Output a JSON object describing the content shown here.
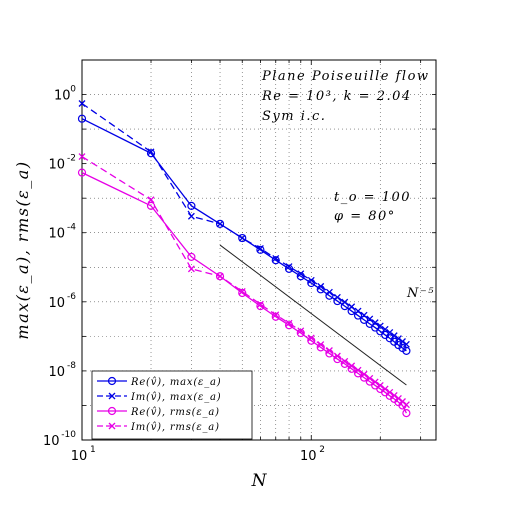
{
  "chart_data": {
    "type": "line",
    "xscale": "log",
    "yscale": "log",
    "xlim": [
      10,
      350
    ],
    "ylim": [
      1e-10,
      10
    ],
    "grid": true,
    "xlabel": "N",
    "ylabel": "max(ε_a), rms(ε_a)",
    "x_ticks": [
      {
        "value": 10,
        "base": "10",
        "exp": "1"
      },
      {
        "value": 100,
        "base": "10",
        "exp": "2"
      }
    ],
    "y_ticks": [
      {
        "value": 1e-10,
        "base": "10",
        "exp": "-10"
      },
      {
        "value": 1e-08,
        "base": "10",
        "exp": "-8"
      },
      {
        "value": 1e-06,
        "base": "10",
        "exp": "-6"
      },
      {
        "value": 0.0001,
        "base": "10",
        "exp": "-4"
      },
      {
        "value": 0.01,
        "base": "10",
        "exp": "-2"
      },
      {
        "value": 1,
        "base": "10",
        "exp": "0"
      }
    ],
    "annotations": {
      "title_lines": [
        "Plane Poiseuille flow",
        "Re = 10³,  k = 2.04",
        "Sym i.c."
      ],
      "params_lines": [
        "t_o = 100",
        "φ = 80°"
      ],
      "slope_label": "N⁻⁵"
    },
    "reference_line": {
      "label": "N⁻⁵",
      "x": [
        40,
        260
      ],
      "y": [
        4.4e-05,
        3.9e-09
      ]
    },
    "x": [
      10,
      20,
      30,
      40,
      50,
      60,
      70,
      80,
      90,
      100,
      110,
      120,
      130,
      140,
      150,
      160,
      170,
      180,
      190,
      200,
      210,
      220,
      230,
      240,
      250,
      260
    ],
    "series": [
      {
        "name": "Re(v̂),  max(ε_a)",
        "color": "#0000e6",
        "dash": "solid",
        "marker": "circle",
        "values": [
          0.2,
          0.02,
          0.0006,
          0.00018,
          7e-05,
          3.2e-05,
          1.6e-05,
          9e-06,
          5.5e-06,
          3.5e-06,
          2.3e-06,
          1.5e-06,
          1.05e-06,
          7.5e-07,
          5.4e-07,
          4e-07,
          3e-07,
          2.3e-07,
          1.8e-07,
          1.4e-07,
          1.1e-07,
          8.8e-08,
          7e-08,
          5.6e-08,
          4.6e-08,
          3.8e-08
        ]
      },
      {
        "name": "Im(v̂),  max(ε_a)",
        "color": "#0000e6",
        "dash": "dashed",
        "marker": "x",
        "values": [
          0.55,
          0.022,
          0.0003,
          0.00018,
          7e-05,
          3.5e-05,
          1.8e-05,
          1.05e-05,
          6.5e-06,
          4.2e-06,
          2.8e-06,
          1.9e-06,
          1.35e-06,
          9.8e-07,
          7.2e-07,
          5.4e-07,
          4.1e-07,
          3.2e-07,
          2.5e-07,
          2e-07,
          1.6e-07,
          1.3e-07,
          1.05e-07,
          8.6e-08,
          7.1e-08,
          5.9e-08
        ]
      },
      {
        "name": "Re(v̂),  rms(ε_a)",
        "color": "#e600e6",
        "dash": "solid",
        "marker": "circle",
        "values": [
          0.0055,
          0.0006,
          2e-05,
          5.5e-06,
          1.8e-06,
          7.5e-07,
          3.7e-07,
          2.1e-07,
          1.25e-07,
          7.5e-08,
          4.8e-08,
          3.2e-08,
          2.2e-08,
          1.6e-08,
          1.15e-08,
          8.5e-09,
          6.4e-09,
          4.9e-09,
          3.8e-09,
          3e-09,
          2.4e-09,
          1.9e-09,
          1.55e-09,
          1.25e-09,
          1e-09,
          6e-10
        ]
      },
      {
        "name": "Im(v̂),  rms(ε_a)",
        "color": "#e600e6",
        "dash": "dashed",
        "marker": "x",
        "values": [
          0.016,
          0.0009,
          9e-06,
          5.5e-06,
          2e-06,
          8.5e-07,
          4.2e-07,
          2.4e-07,
          1.45e-07,
          9e-08,
          5.8e-08,
          3.9e-08,
          2.7e-08,
          1.9e-08,
          1.4e-08,
          1.05e-08,
          8e-09,
          6.1e-09,
          4.8e-09,
          3.8e-09,
          3e-09,
          2.4e-09,
          1.95e-09,
          1.6e-09,
          1.3e-09,
          1.05e-09
        ]
      }
    ],
    "legend_position": "bottom-left"
  }
}
